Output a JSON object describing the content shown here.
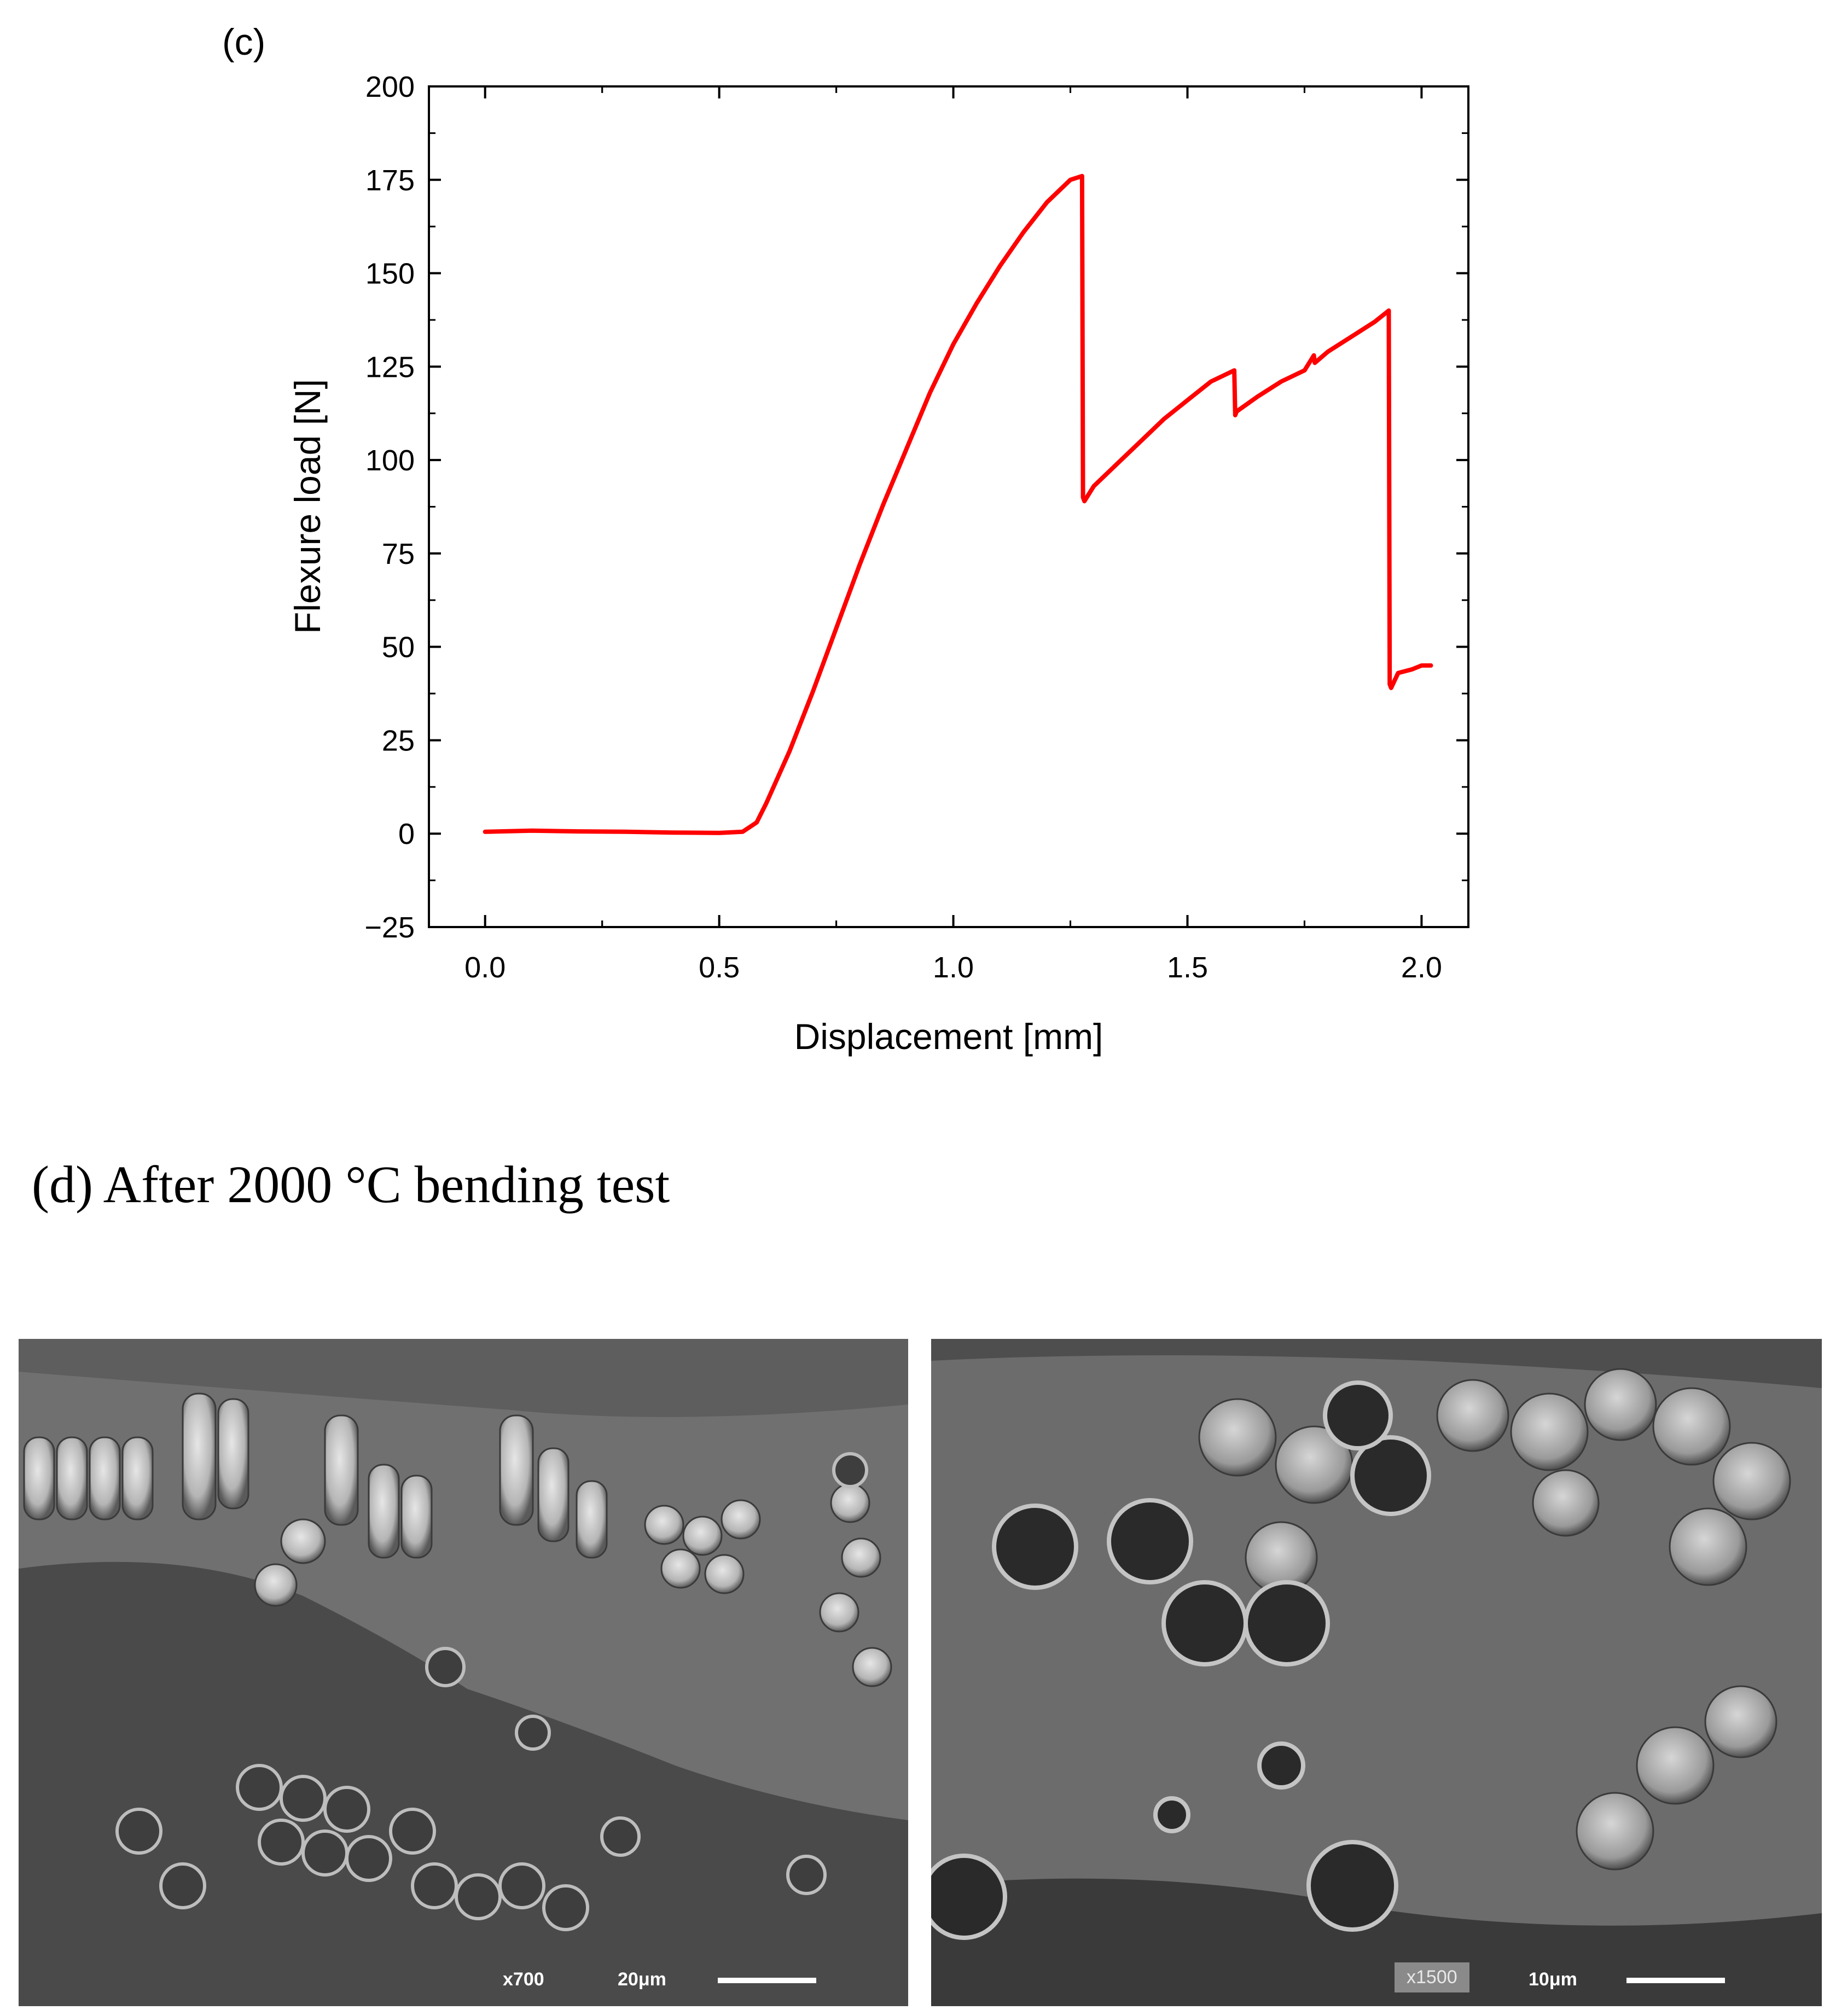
{
  "panel_c_label": "(c)",
  "panel_d_heading": "(d) After 2000 °C bending test",
  "chart_data": {
    "type": "line",
    "xlabel": "Displacement [mm]",
    "ylabel": "Flexure load [N]",
    "xlim": [
      -0.12,
      2.1
    ],
    "ylim": [
      -25,
      200
    ],
    "xticks": [
      "0.0",
      "0.5",
      "1.0",
      "1.5",
      "2.0"
    ],
    "yticks": [
      "−25",
      "0",
      "25",
      "50",
      "75",
      "100",
      "125",
      "150",
      "175",
      "200"
    ],
    "grid": false,
    "series_color": "#ff0000",
    "series": [
      {
        "x": [
          0.0,
          0.1,
          0.2,
          0.3,
          0.4,
          0.5,
          0.55,
          0.58,
          0.6,
          0.65,
          0.7,
          0.75,
          0.8,
          0.85,
          0.9,
          0.95,
          1.0,
          1.05,
          1.1,
          1.15,
          1.2,
          1.25,
          1.275,
          1.277,
          1.28,
          1.3,
          1.35,
          1.4,
          1.45,
          1.5,
          1.55,
          1.6,
          1.602,
          1.605,
          1.65,
          1.7,
          1.75,
          1.77,
          1.772,
          1.8,
          1.85,
          1.9,
          1.93,
          1.932,
          1.935,
          1.95,
          1.98,
          2.0,
          2.02
        ],
        "y": [
          0.5,
          0.8,
          0.6,
          0.5,
          0.3,
          0.2,
          0.5,
          3,
          8,
          22,
          38,
          55,
          72,
          88,
          103,
          118,
          131,
          142,
          152,
          161,
          169,
          175,
          176,
          90,
          89,
          93,
          99,
          105,
          111,
          116,
          121,
          124,
          112,
          113,
          117,
          121,
          124,
          128,
          126,
          129,
          133,
          137,
          140,
          40,
          39,
          43,
          44,
          45,
          45
        ]
      }
    ]
  },
  "sem_left": {
    "magnification": "x700",
    "scale_label": "20μm"
  },
  "sem_right": {
    "magnification": "x1500",
    "scale_label": "10μm"
  }
}
